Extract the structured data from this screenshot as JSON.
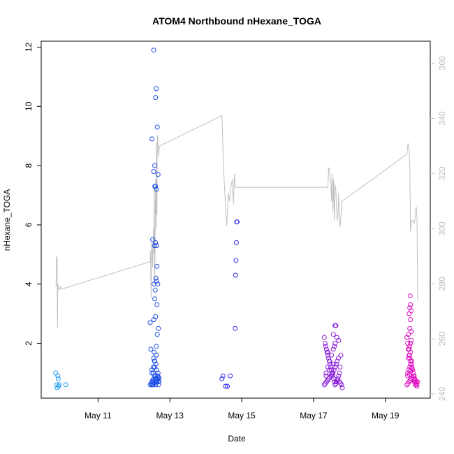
{
  "chart_data": {
    "type": "scatter",
    "title": "ATOM4 Northbound nHexane_TOGA",
    "xlabel": "Date",
    "ylabel": "nHexane_TOGA",
    "x_ticks": [
      "May 11",
      "May 13",
      "May 15",
      "May 17",
      "May 19"
    ],
    "y_ticks": [
      "2",
      "4",
      "6",
      "8",
      "10",
      "12"
    ],
    "y2_ticks": [
      "240",
      "260",
      "280",
      "300",
      "320",
      "340",
      "360"
    ],
    "xlim": [
      "May 9 10:00",
      "May 20 06:00"
    ],
    "ylim": [
      0.15,
      12.2
    ],
    "y2lim": [
      238.5,
      368
    ],
    "y2_color": "#bdbdbd",
    "point_colors": [
      "#00a0ff",
      "#0050ff",
      "#3020ff",
      "#8000ff",
      "#e000c8"
    ],
    "series": [
      {
        "x_day": [
          9.82,
          9.85,
          9.86,
          9.88,
          9.89,
          9.9,
          9.92,
          10.1
        ],
        "y": [
          1.0,
          0.6,
          0.5,
          0.9,
          0.8,
          0.55,
          0.6,
          0.6
        ],
        "color": "#1e9cf0"
      },
      {
        "x_day": [
          12.45,
          12.47,
          12.5,
          12.52,
          12.53,
          12.54,
          12.55,
          12.56,
          12.57,
          12.58,
          12.59,
          12.6,
          12.61,
          12.62,
          12.63,
          12.64,
          12.65,
          12.66,
          12.67,
          12.68,
          12.69,
          12.7,
          12.45,
          12.48,
          12.5,
          12.52,
          12.55,
          12.57,
          12.6,
          12.62,
          12.64,
          12.66,
          12.68,
          12.5,
          12.53,
          12.56,
          12.6,
          12.63,
          12.66,
          12.69,
          12.5,
          12.54,
          12.58,
          12.62,
          12.65,
          12.68,
          12.55,
          12.6,
          12.64,
          12.58,
          12.56,
          12.62,
          12.66,
          12.59,
          12.61,
          12.64,
          12.52,
          12.57,
          12.63,
          12.6,
          12.58,
          12.62,
          12.6,
          12.55,
          12.67
        ],
        "y": [
          2.7,
          1.8,
          1.1,
          0.6,
          0.7,
          1.0,
          1.5,
          1.7,
          1.4,
          1.2,
          0.8,
          0.9,
          1.3,
          1.6,
          1.1,
          0.7,
          0.8,
          0.9,
          1.0,
          0.6,
          0.7,
          0.8,
          0.6,
          0.65,
          0.7,
          0.75,
          0.8,
          0.9,
          0.6,
          0.7,
          0.8,
          0.9,
          0.7,
          0.6,
          0.6,
          0.65,
          0.7,
          0.75,
          0.8,
          0.85,
          1.0,
          1.2,
          1.4,
          1.9,
          2.3,
          2.5,
          2.8,
          2.9,
          3.3,
          3.5,
          4.0,
          4.1,
          4.0,
          3.8,
          4.2,
          4.6,
          5.5,
          5.3,
          5.3,
          5.4,
          7.3,
          7.2,
          7.3,
          7.8,
          7.7
        ],
        "color": "#1f4fe6"
      },
      {
        "x_day": [
          12.5,
          12.58,
          12.6,
          12.62,
          12.65,
          12.55
        ],
        "y": [
          8.9,
          8.0,
          10.3,
          10.6,
          9.3,
          11.9
        ],
        "color": "#1f4fe6"
      },
      {
        "x_day": [
          14.45,
          14.48,
          14.6,
          14.68,
          14.55,
          14.82,
          14.83,
          14.84,
          14.85,
          14.86,
          14.87
        ],
        "y": [
          0.8,
          0.9,
          0.55,
          0.9,
          0.55,
          2.5,
          4.3,
          4.8,
          5.4,
          6.1,
          6.1
        ],
        "color": "#3028ee"
      },
      {
        "x_day": [
          17.3,
          17.32,
          17.34,
          17.36,
          17.38,
          17.4,
          17.42,
          17.44,
          17.46,
          17.48,
          17.5,
          17.52,
          17.54,
          17.56,
          17.58,
          17.6,
          17.62,
          17.64,
          17.66,
          17.68,
          17.7,
          17.72,
          17.74,
          17.76,
          17.3,
          17.33,
          17.36,
          17.39,
          17.42,
          17.45,
          17.48,
          17.51,
          17.54,
          17.57,
          17.6,
          17.63,
          17.66,
          17.69,
          17.72,
          17.75,
          17.78,
          17.8,
          17.35,
          17.4,
          17.45,
          17.5,
          17.55,
          17.6,
          17.65,
          17.35,
          17.45,
          17.55,
          17.6,
          17.62,
          17.7,
          17.55,
          17.58,
          17.4
        ],
        "y": [
          2.2,
          2.0,
          1.9,
          1.8,
          1.7,
          1.6,
          1.5,
          1.4,
          1.3,
          1.2,
          1.1,
          1.0,
          0.9,
          0.8,
          0.7,
          0.6,
          0.65,
          0.7,
          0.75,
          0.8,
          0.9,
          1.0,
          1.2,
          1.6,
          0.6,
          0.65,
          0.7,
          0.75,
          0.8,
          0.85,
          0.9,
          0.95,
          1.0,
          1.1,
          1.2,
          1.3,
          1.4,
          1.5,
          0.7,
          0.65,
          0.6,
          0.5,
          1.0,
          1.2,
          1.4,
          1.6,
          1.8,
          2.0,
          2.2,
          0.9,
          1.1,
          1.3,
          2.6,
          2.6,
          2.1,
          2.3,
          1.9,
          1.7
        ],
        "color": "#8a1edc"
      },
      {
        "x_day": [
          19.6,
          19.62,
          19.64,
          19.66,
          19.68,
          19.7,
          19.72,
          19.74,
          19.76,
          19.78,
          19.8,
          19.82,
          19.84,
          19.86,
          19.88,
          19.6,
          19.63,
          19.66,
          19.69,
          19.72,
          19.75,
          19.78,
          19.81,
          19.84,
          19.87,
          19.9,
          19.62,
          19.65,
          19.68,
          19.71,
          19.74,
          19.64,
          19.67,
          19.7,
          19.66,
          19.68,
          19.7,
          19.72,
          19.62,
          19.66,
          19.7,
          19.74,
          19.78,
          19.82,
          19.86,
          19.64,
          19.68,
          19.72,
          19.7,
          19.66,
          19.68,
          19.7,
          19.72,
          19.69
        ],
        "y": [
          2.2,
          2.0,
          1.8,
          1.6,
          1.5,
          1.4,
          1.3,
          1.2,
          1.1,
          1.0,
          0.9,
          0.8,
          0.7,
          0.6,
          0.55,
          0.6,
          0.65,
          0.7,
          0.75,
          0.8,
          0.85,
          0.9,
          0.7,
          0.6,
          0.65,
          0.7,
          1.0,
          1.1,
          1.2,
          1.3,
          1.4,
          1.5,
          1.6,
          1.7,
          1.8,
          1.9,
          2.0,
          2.1,
          0.9,
          0.95,
          1.05,
          1.15,
          0.8,
          0.75,
          0.7,
          2.3,
          2.5,
          2.4,
          2.8,
          3.0,
          3.2,
          3.3,
          3.1,
          3.6
        ],
        "color": "#e010c0"
      }
    ],
    "altitude_line": {
      "color": "#c0c0c0",
      "x_day": [
        9.83,
        9.84,
        9.86,
        9.87,
        9.88,
        9.9,
        9.93,
        9.95,
        9.97,
        12.45,
        12.46,
        12.47,
        12.48,
        12.49,
        12.5,
        12.52,
        12.54,
        12.55,
        12.56,
        12.58,
        12.6,
        12.62,
        12.63,
        12.64,
        12.65,
        12.66,
        12.67,
        12.68,
        12.7,
        12.72,
        14.45,
        14.5,
        14.55,
        14.58,
        14.6,
        14.63,
        14.66,
        14.7,
        14.74,
        14.77,
        14.8,
        14.82,
        17.4,
        17.42,
        17.44,
        17.46,
        17.48,
        17.5,
        17.52,
        17.54,
        17.56,
        17.58,
        17.6,
        17.62,
        17.64,
        17.66,
        17.68,
        17.7,
        17.72,
        17.74,
        17.78,
        17.8,
        19.6,
        19.63,
        19.65,
        19.68,
        19.7,
        19.73,
        19.75,
        19.8,
        19.83,
        19.86,
        19.88,
        19.9
      ],
      "y2": [
        279,
        290,
        289,
        264,
        280,
        278,
        278,
        279,
        278,
        288,
        292,
        280,
        275,
        293,
        295,
        286,
        300,
        291,
        315,
        280,
        318,
        300,
        331,
        305,
        334,
        333,
        330,
        326,
        329,
        330,
        341,
        320,
        308,
        301,
        305,
        313,
        310,
        315,
        318,
        309,
        320,
        315,
        315,
        322,
        322,
        318,
        318,
        310,
        320,
        306,
        318,
        303,
        316,
        314,
        309,
        303,
        305,
        313,
        301,
        301,
        308,
        310,
        327,
        331,
        330,
        324,
        299,
        303,
        303,
        302,
        304,
        308,
        304,
        274
      ]
    }
  }
}
